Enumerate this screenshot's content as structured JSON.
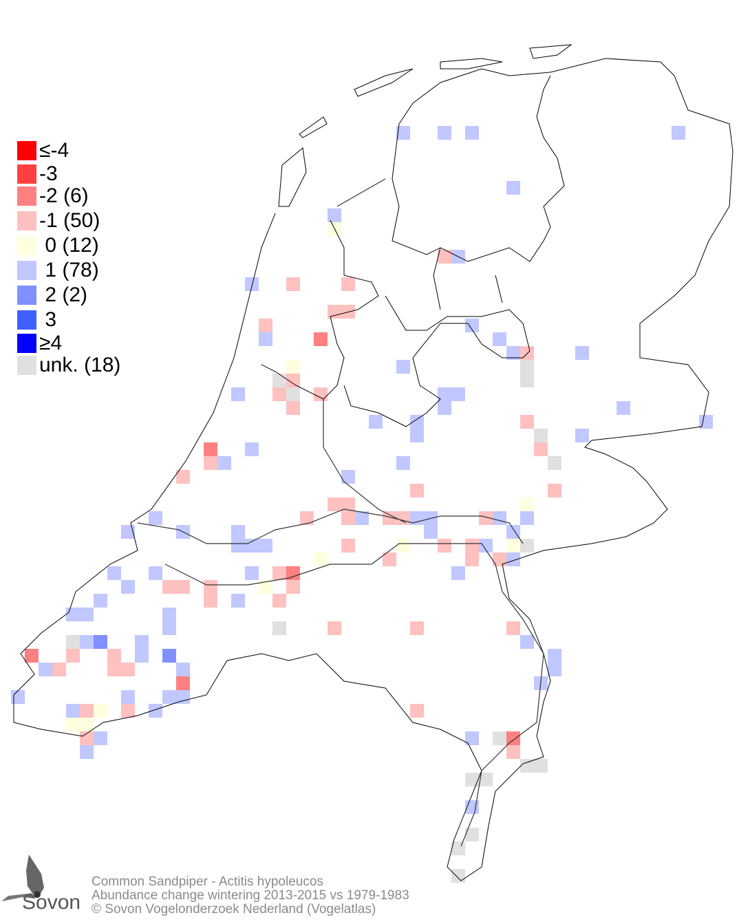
{
  "legend": {
    "items": [
      {
        "label": "≤-4",
        "color": "#ff0000"
      },
      {
        "label": "-3",
        "color": "#ff4040"
      },
      {
        "label": "-2 (6)",
        "color": "#ff8080"
      },
      {
        "label": "-1 (50)",
        "color": "#ffc0c0"
      },
      {
        "label": " 0 (12)",
        "color": "#ffffe0"
      },
      {
        "label": " 1 (78)",
        "color": "#c0c8ff"
      },
      {
        "label": " 2 (2)",
        "color": "#8090ff"
      },
      {
        "label": " 3",
        "color": "#4060ff"
      },
      {
        "label": "≥4",
        "color": "#0000ff"
      },
      {
        "label": "unk. (18)",
        "color": "#e0e0e0"
      }
    ]
  },
  "footer": {
    "species": "Common Sandpiper - Actitis hypoleucos",
    "subtitle": "Abundance change wintering  2013-2015 vs 1979-1983",
    "copyright": "© Sovon Vogelonderzoek Nederland (Vogelatlas)"
  },
  "logo": {
    "text": "Sovon"
  }
}
